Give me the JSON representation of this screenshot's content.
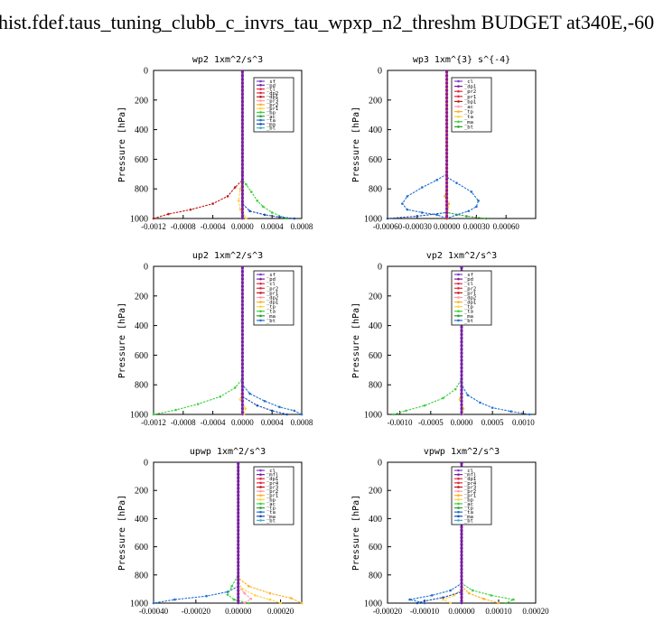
{
  "title": "hist.fdef.taus_tuning_clubb_c_invrs_tau_wpxp_n2_threshm  BUDGET at340E,-60",
  "colors": {
    "sf": "#7b3fc4",
    "pd": "#7a1fa0",
    "cl": "#e8283c",
    "dp2": "#e8283c",
    "dp1": "#c01818",
    "pr3": "#ff9ab0",
    "pr2": "#ffb020",
    "pr1": "#ffd040",
    "bp": "#3ecf3e",
    "ac": "#2aa02a",
    "tp": "#2070d0",
    "ta": "#1a4ab0",
    "ma": "#40b0d0",
    "bt": "#30e0e0",
    "mfl": "#7a1fa0",
    "pr4": "#e8283c"
  },
  "chart_data": [
    {
      "type": "line",
      "title": "wp2  1xm^2/s^3",
      "ylabel": "Pressure [hPa]",
      "ylim": [
        1000,
        0
      ],
      "y_ticks": [
        0,
        200,
        400,
        600,
        800,
        1000
      ],
      "xlim": [
        -0.0012,
        0.0008
      ],
      "x_ticks": [
        "-0.0012",
        "-0.0008",
        "-0.0004",
        "0.0000",
        "0.0004",
        "0.0008"
      ],
      "x_tick_values": [
        -0.0012,
        -0.0008,
        -0.0004,
        0.0,
        0.0004,
        0.0008
      ],
      "legend": [
        "_sf",
        "_pd",
        "_cl",
        "_dp2",
        "_dp1",
        "_pr3",
        "_pr2",
        "_pr1",
        "_bp",
        "_ac",
        "_ta",
        "_ma",
        "_bt"
      ],
      "series": [
        {
          "name": "_bp",
          "color_key": "bp",
          "x": [
            0,
            0,
            0,
            5e-05,
            0.00012,
            0.0002,
            0.00028,
            0.0004,
            0.0006
          ],
          "y": [
            0,
            700,
            740,
            770,
            820,
            880,
            920,
            960,
            1000
          ]
        },
        {
          "name": "_dp1",
          "color_key": "dp1",
          "x": [
            0,
            0,
            0,
            -0.0001,
            -0.0002,
            -0.0004,
            -0.0007,
            -0.001,
            -0.0012
          ],
          "y": [
            0,
            700,
            740,
            790,
            850,
            900,
            940,
            970,
            1000
          ]
        },
        {
          "name": "_pr1",
          "color_key": "pr1",
          "x": [
            0,
            0,
            -3e-05,
            -5e-05,
            -3e-05,
            2e-05,
            5e-05
          ],
          "y": [
            0,
            750,
            800,
            880,
            940,
            980,
            1000
          ]
        },
        {
          "name": "_ta",
          "color_key": "ta",
          "x": [
            0,
            0,
            0.0001,
            0.0003,
            0.0005,
            0.0007
          ],
          "y": [
            0,
            900,
            950,
            975,
            990,
            1000
          ]
        },
        {
          "name": "_pd",
          "color_key": "pd",
          "x": [
            0,
            0
          ],
          "y": [
            0,
            1000
          ]
        }
      ]
    },
    {
      "type": "line",
      "title": "wp3  1xm^{3} s^{-4}",
      "ylabel": "Pressure [hPa]",
      "ylim": [
        1000,
        0
      ],
      "y_ticks": [
        0,
        200,
        400,
        600,
        800,
        1000
      ],
      "xlim": [
        -0.0006,
        0.0009
      ],
      "x_ticks": [
        "-0.00060",
        "-0.00030",
        "0.00000",
        "0.00030",
        "0.00060"
      ],
      "x_tick_values": [
        -0.0006,
        -0.0003,
        0.0,
        0.0003,
        0.0006
      ],
      "legend": [
        "_cl",
        "_dp1",
        "_pr2",
        "_pr1",
        "_bp1",
        "_ac",
        "_tp",
        "_ta",
        "_ma",
        "_bt"
      ],
      "series": [
        {
          "name": "_tp",
          "color_key": "tp",
          "x": [
            0,
            0,
            -0.0001,
            -0.00025,
            -0.0004,
            -0.00045,
            -0.0004,
            -0.00025,
            -0.0001,
            0
          ],
          "y": [
            0,
            700,
            740,
            790,
            850,
            900,
            940,
            960,
            975,
            1000
          ]
        },
        {
          "name": "_tp ",
          "color_key": "tp",
          "x": [
            0,
            0,
            0.0001,
            0.00025,
            0.00032,
            0.0003,
            0.00022,
            0.0001,
            0
          ],
          "y": [
            0,
            720,
            760,
            820,
            880,
            920,
            950,
            975,
            1000
          ]
        },
        {
          "name": "_ta",
          "color_key": "ta",
          "x": [
            0,
            0,
            -0.0003,
            -0.0006
          ],
          "y": [
            0,
            960,
            985,
            1000
          ]
        },
        {
          "name": "_ac",
          "color_key": "ac",
          "x": [
            0,
            0,
            0.0002,
            0.0004
          ],
          "y": [
            0,
            960,
            985,
            1000
          ]
        },
        {
          "name": "_pr2",
          "color_key": "pr2",
          "x": [
            0,
            0,
            -2e-05,
            2e-05,
            0
          ],
          "y": [
            0,
            800,
            850,
            900,
            1000
          ]
        },
        {
          "name": "_cl",
          "color_key": "cl",
          "x": [
            0,
            0
          ],
          "y": [
            0,
            1000
          ]
        }
      ]
    },
    {
      "type": "line",
      "title": "up2  1xm^2/s^3",
      "ylabel": "Pressure [hPa]",
      "ylim": [
        1000,
        0
      ],
      "y_ticks": [
        0,
        200,
        400,
        600,
        800,
        1000
      ],
      "xlim": [
        -0.0012,
        0.0008
      ],
      "x_ticks": [
        "-0.0012",
        "-0.0008",
        "-0.0004",
        "0.0000",
        "0.0004",
        "0.0008"
      ],
      "x_tick_values": [
        -0.0012,
        -0.0008,
        -0.0004,
        0.0,
        0.0004,
        0.0008
      ],
      "legend": [
        "_sf",
        "_pd",
        "_cl",
        "_pr2",
        "_pr1",
        "_dp2",
        "_dp1",
        "_tp",
        "_ta",
        "_ma",
        "_bt"
      ],
      "series": [
        {
          "name": "_dp1",
          "color_key": "bp",
          "x": [
            0,
            0,
            -0.0001,
            -0.0003,
            -0.0006,
            -0.0009,
            -0.0012
          ],
          "y": [
            0,
            760,
            820,
            880,
            930,
            970,
            1000
          ]
        },
        {
          "name": "_tp",
          "color_key": "tp",
          "x": [
            0,
            0,
            0.0001,
            0.0003,
            0.0005,
            0.0007,
            0.0008
          ],
          "y": [
            0,
            800,
            860,
            910,
            950,
            975,
            1000
          ]
        },
        {
          "name": "_ta",
          "color_key": "ta",
          "x": [
            0,
            0,
            0.0002,
            0.0004,
            0.0006
          ],
          "y": [
            0,
            880,
            940,
            975,
            1000
          ]
        },
        {
          "name": "_pr1",
          "color_key": "pr1",
          "x": [
            0,
            0,
            -3e-05,
            4e-05,
            2e-05
          ],
          "y": [
            0,
            800,
            900,
            960,
            1000
          ]
        },
        {
          "name": "_sf",
          "color_key": "sf",
          "x": [
            0,
            0
          ],
          "y": [
            0,
            1000
          ]
        }
      ]
    },
    {
      "type": "line",
      "title": "vp2  1xm^2/s^3",
      "ylabel": "Pressure [hPa]",
      "ylim": [
        1000,
        0
      ],
      "y_ticks": [
        0,
        200,
        400,
        600,
        800,
        1000
      ],
      "xlim": [
        -0.0012,
        0.0012
      ],
      "x_ticks": [
        "-0.0010",
        "-0.0005",
        "0.0000",
        "0.0005",
        "0.0010"
      ],
      "x_tick_values": [
        -0.001,
        -0.0005,
        0.0,
        0.0005,
        0.001
      ],
      "legend": [
        "_sf",
        "_pd",
        "_cl",
        "_pr2",
        "_pr1",
        "_dp2",
        "_dp1",
        "_tp",
        "_ta",
        "_ma",
        "_bt"
      ],
      "series": [
        {
          "name": "_dp1",
          "color_key": "bp",
          "x": [
            0,
            0,
            -0.0001,
            -0.0003,
            -0.0006,
            -0.0009,
            -0.0011
          ],
          "y": [
            0,
            760,
            830,
            890,
            940,
            975,
            1000
          ]
        },
        {
          "name": "_tp",
          "color_key": "tp",
          "x": [
            0,
            0,
            0.0001,
            0.0003,
            0.0005,
            0.0008,
            0.0011
          ],
          "y": [
            0,
            800,
            870,
            920,
            955,
            980,
            1000
          ]
        },
        {
          "name": "_pr1",
          "color_key": "pr1",
          "x": [
            0,
            0,
            -3e-05,
            3e-05,
            1e-05
          ],
          "y": [
            0,
            800,
            900,
            960,
            1000
          ]
        },
        {
          "name": "_sf",
          "color_key": "sf",
          "x": [
            0,
            0
          ],
          "y": [
            0,
            1000
          ]
        }
      ]
    },
    {
      "type": "line",
      "title": "upwp  1xm^2/s^3",
      "ylabel": "Pressure [hPa]",
      "ylim": [
        1000,
        0
      ],
      "y_ticks": [
        0,
        200,
        400,
        600,
        800,
        1000
      ],
      "xlim": [
        -0.0004,
        0.0003
      ],
      "x_ticks": [
        "-0.00040",
        "-0.00020",
        "0.00000",
        "0.00020"
      ],
      "x_tick_values": [
        -0.0004,
        -0.0002,
        0.0,
        0.0002
      ],
      "legend": [
        "_cl",
        "_mfl",
        "_dp1",
        "_pr4",
        "_pr3",
        "_pr2",
        "_pr1",
        "_bp",
        "_ac",
        "_tp",
        "_ta",
        "_ma",
        "_bt"
      ],
      "series": [
        {
          "name": "_tp",
          "color_key": "tp",
          "x": [
            0,
            0,
            -5e-05,
            -0.00015,
            -0.0003,
            -0.0004
          ],
          "y": [
            0,
            880,
            920,
            950,
            975,
            1000
          ]
        },
        {
          "name": "_pr2",
          "color_key": "pr2",
          "x": [
            0,
            0,
            5e-05,
            0.00015,
            0.00025,
            0.0003
          ],
          "y": [
            0,
            820,
            880,
            930,
            965,
            1000
          ]
        },
        {
          "name": "_pr1",
          "color_key": "pr1",
          "x": [
            0,
            0,
            2e-05,
            8e-05,
            0.00015,
            0.0002
          ],
          "y": [
            0,
            850,
            900,
            945,
            975,
            1000
          ]
        },
        {
          "name": "_bp",
          "color_key": "bp",
          "x": [
            0,
            0,
            -3e-05,
            -5e-05,
            -2e-05,
            5e-05
          ],
          "y": [
            0,
            800,
            880,
            940,
            975,
            1000
          ]
        },
        {
          "name": "_pr3",
          "color_key": "pr3",
          "x": [
            0,
            0,
            3e-05,
            6e-05,
            3e-05
          ],
          "y": [
            0,
            880,
            930,
            970,
            1000
          ]
        },
        {
          "name": "_mfl",
          "color_key": "mfl",
          "x": [
            0,
            0
          ],
          "y": [
            0,
            1000
          ]
        }
      ]
    },
    {
      "type": "line",
      "title": "vpwp  1xm^2/s^3",
      "ylabel": "Pressure [hPa]",
      "ylim": [
        1000,
        0
      ],
      "y_ticks": [
        0,
        200,
        400,
        600,
        800,
        1000
      ],
      "xlim": [
        -0.0002,
        0.0002
      ],
      "x_ticks": [
        "-0.00020",
        "-0.00010",
        "0.00000",
        "0.00010",
        "0.00020"
      ],
      "x_tick_values": [
        -0.0002,
        -0.0001,
        0.0,
        0.0001,
        0.0002
      ],
      "legend": [
        "_cl",
        "_mfl",
        "_dp1",
        "_pr4",
        "_pr3",
        "_pr2",
        "_pr1",
        "_bp",
        "_ac",
        "_tp",
        "_ta",
        "_ma",
        "_bt"
      ],
      "series": [
        {
          "name": "_tp",
          "color_key": "tp",
          "x": [
            0,
            0,
            -3e-05,
            -8e-05,
            -0.00014,
            -0.0001
          ],
          "y": [
            0,
            860,
            910,
            945,
            975,
            1000
          ]
        },
        {
          "name": "_bp",
          "color_key": "bp",
          "x": [
            0,
            0,
            3e-05,
            8e-05,
            0.00014,
            0.00012
          ],
          "y": [
            0,
            860,
            910,
            945,
            975,
            1000
          ]
        },
        {
          "name": "_pr2",
          "color_key": "pr2",
          "x": [
            0,
            0,
            2e-05,
            6e-05,
            0.0001
          ],
          "y": [
            0,
            880,
            930,
            970,
            1000
          ]
        },
        {
          "name": "_pr1",
          "color_key": "pr1",
          "x": [
            0,
            0,
            -2e-05,
            -5e-05,
            -3e-05
          ],
          "y": [
            0,
            900,
            945,
            975,
            1000
          ]
        },
        {
          "name": "_ta",
          "color_key": "ta",
          "x": [
            0,
            0,
            -5e-05,
            -0.0001,
            -0.00012
          ],
          "y": [
            0,
            920,
            960,
            985,
            1000
          ]
        },
        {
          "name": "_mfl",
          "color_key": "mfl",
          "x": [
            0,
            0
          ],
          "y": [
            0,
            1000
          ]
        }
      ]
    }
  ]
}
